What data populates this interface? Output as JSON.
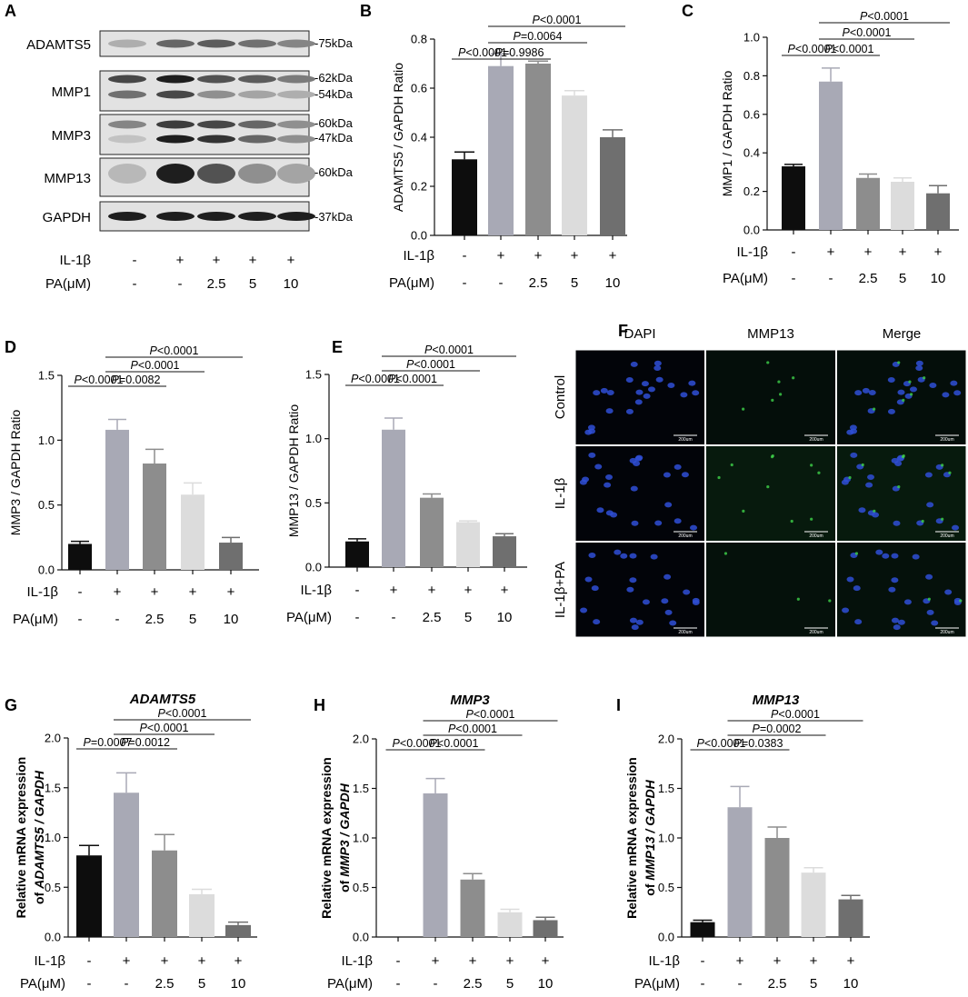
{
  "figure": {
    "panel_letters": [
      "A",
      "B",
      "C",
      "D",
      "E",
      "F",
      "G",
      "H",
      "I"
    ],
    "treatment_rows": {
      "il1b_label": "IL-1β",
      "pa_label": "PA(μM)",
      "il1b_values": [
        "-",
        "+",
        "+",
        "+",
        "+"
      ],
      "pa_values": [
        "-",
        "-",
        "2.5",
        "5",
        "10"
      ]
    },
    "bar_colors": [
      "#0d0d0d",
      "#a8a9b5",
      "#8d8d8d",
      "#dcdcdc",
      "#6f6f6f"
    ]
  },
  "western_blot": {
    "proteins": [
      {
        "name": "ADAMTS5",
        "kda": [
          "-75kDa"
        ]
      },
      {
        "name": "MMP1",
        "kda": [
          "-62kDa",
          "-54kDa"
        ]
      },
      {
        "name": "MMP3",
        "kda": [
          "-60kDa",
          "-47kDa"
        ]
      },
      {
        "name": "MMP13",
        "kda": [
          "-60kDa"
        ]
      },
      {
        "name": "GAPDH",
        "kda": [
          "-37kDa"
        ]
      }
    ],
    "band_intensity": [
      [
        [
          0.25,
          0.6,
          0.65,
          0.55,
          0.45
        ]
      ],
      [
        [
          0.75,
          0.95,
          0.7,
          0.65,
          0.5
        ],
        [
          0.55,
          0.75,
          0.4,
          0.3,
          0.25
        ]
      ],
      [
        [
          0.45,
          0.8,
          0.75,
          0.6,
          0.4
        ],
        [
          0.15,
          0.95,
          0.85,
          0.6,
          0.4
        ]
      ],
      [
        [
          0.2,
          0.95,
          0.7,
          0.4,
          0.3
        ]
      ],
      [
        [
          0.95,
          0.95,
          0.95,
          0.95,
          0.95
        ]
      ]
    ]
  },
  "immunofluorescence": {
    "columns": [
      "DAPI",
      "MMP13",
      "Merge"
    ],
    "rows": [
      "Control",
      "IL-1β",
      "IL-1β+PA"
    ],
    "scale_bar_label": "200um"
  },
  "chart_data": [
    {
      "panel": "B",
      "type": "bar",
      "title": "",
      "categories": [
        "IL-1β - / PA -",
        "IL-1β + / PA -",
        "IL-1β + / PA 2.5",
        "IL-1β + / PA 5",
        "IL-1β + / PA 10"
      ],
      "values": [
        0.31,
        0.69,
        0.7,
        0.57,
        0.4
      ],
      "errors": [
        0.03,
        0.05,
        0.01,
        0.02,
        0.03
      ],
      "ylabel": "ADAMTS5 / GAPDH Ratio",
      "ylim": [
        0,
        0.8
      ],
      "yticks": [
        "0.0",
        "0.2",
        "0.4",
        "0.6",
        "0.8"
      ],
      "ytick_values": [
        0,
        0.2,
        0.4,
        0.6,
        0.8
      ],
      "comparisons": [
        {
          "a": 0,
          "b": 1,
          "label": "P<0.0001"
        },
        {
          "a": 1,
          "b": 2,
          "label": "P=0.9986"
        },
        {
          "a": 1,
          "b": 3,
          "label": "P=0.0064"
        },
        {
          "a": 1,
          "b": 4,
          "label": "P<0.0001"
        }
      ]
    },
    {
      "panel": "C",
      "type": "bar",
      "title": "",
      "categories": [
        "IL-1β - / PA -",
        "IL-1β + / PA -",
        "IL-1β + / PA 2.5",
        "IL-1β + / PA 5",
        "IL-1β + / PA 10"
      ],
      "values": [
        0.33,
        0.77,
        0.27,
        0.25,
        0.19
      ],
      "errors": [
        0.01,
        0.07,
        0.02,
        0.02,
        0.04
      ],
      "ylabel": "MMP1 / GAPDH Ratio",
      "ylim": [
        0,
        1.0
      ],
      "yticks": [
        "0.0",
        "0.2",
        "0.4",
        "0.6",
        "0.8",
        "1.0"
      ],
      "ytick_values": [
        0,
        0.2,
        0.4,
        0.6,
        0.8,
        1.0
      ],
      "comparisons": [
        {
          "a": 0,
          "b": 1,
          "label": "P<0.0001"
        },
        {
          "a": 1,
          "b": 2,
          "label": "P<0.0001"
        },
        {
          "a": 1,
          "b": 3,
          "label": "P<0.0001"
        },
        {
          "a": 1,
          "b": 4,
          "label": "P<0.0001"
        }
      ]
    },
    {
      "panel": "D",
      "type": "bar",
      "title": "",
      "categories": [
        "IL-1β - / PA -",
        "IL-1β + / PA -",
        "IL-1β + / PA 2.5",
        "IL-1β + / PA 5",
        "IL-1β + / PA 10"
      ],
      "values": [
        0.2,
        1.08,
        0.82,
        0.58,
        0.21
      ],
      "errors": [
        0.02,
        0.08,
        0.11,
        0.09,
        0.04
      ],
      "ylabel": "MMP3 / GAPDH Ratio",
      "ylim": [
        0,
        1.5
      ],
      "yticks": [
        "0.0",
        "0.5",
        "1.0",
        "1.5"
      ],
      "ytick_values": [
        0,
        0.5,
        1.0,
        1.5
      ],
      "comparisons": [
        {
          "a": 0,
          "b": 1,
          "label": "P<0.0001"
        },
        {
          "a": 1,
          "b": 2,
          "label": "P=0.0082"
        },
        {
          "a": 1,
          "b": 3,
          "label": "P<0.0001"
        },
        {
          "a": 1,
          "b": 4,
          "label": "P<0.0001"
        }
      ]
    },
    {
      "panel": "E",
      "type": "bar",
      "title": "",
      "categories": [
        "IL-1β - / PA -",
        "IL-1β + / PA -",
        "IL-1β + / PA 2.5",
        "IL-1β + / PA 5",
        "IL-1β + / PA 10"
      ],
      "values": [
        0.2,
        1.07,
        0.54,
        0.35,
        0.24
      ],
      "errors": [
        0.02,
        0.09,
        0.03,
        0.01,
        0.02
      ],
      "ylabel": "MMP13 / GAPDH Ratio",
      "ylim": [
        0,
        1.5
      ],
      "yticks": [
        "0.0",
        "0.5",
        "1.0",
        "1.5"
      ],
      "ytick_values": [
        0,
        0.5,
        1.0,
        1.5
      ],
      "comparisons": [
        {
          "a": 0,
          "b": 1,
          "label": "P<0.0001"
        },
        {
          "a": 1,
          "b": 2,
          "label": "P<0.0001"
        },
        {
          "a": 1,
          "b": 3,
          "label": "P<0.0001"
        },
        {
          "a": 1,
          "b": 4,
          "label": "P<0.0001"
        }
      ]
    },
    {
      "panel": "G",
      "type": "bar",
      "title": "ADAMTS5",
      "categories": [
        "IL-1β - / PA -",
        "IL-1β + / PA -",
        "IL-1β + / PA 2.5",
        "IL-1β + / PA 5",
        "IL-1β + / PA 10"
      ],
      "values": [
        0.82,
        1.45,
        0.87,
        0.43,
        0.12
      ],
      "errors": [
        0.1,
        0.2,
        0.16,
        0.05,
        0.03
      ],
      "ylabel_line1": "Relative mRNA expression",
      "ylabel_line2_prefix": "of ",
      "ylabel_line2_gene": "ADAMTS5 / GAPDH",
      "ylim": [
        0,
        2.0
      ],
      "yticks": [
        "0.0",
        "0.5",
        "1.0",
        "1.5",
        "2.0"
      ],
      "ytick_values": [
        0,
        0.5,
        1.0,
        1.5,
        2.0
      ],
      "comparisons": [
        {
          "a": 0,
          "b": 1,
          "label": "P=0.0007"
        },
        {
          "a": 1,
          "b": 2,
          "label": "P=0.0012"
        },
        {
          "a": 1,
          "b": 3,
          "label": "P<0.0001"
        },
        {
          "a": 1,
          "b": 4,
          "label": "P<0.0001"
        }
      ]
    },
    {
      "panel": "H",
      "type": "bar",
      "title": "MMP3",
      "categories": [
        "IL-1β - / PA -",
        "IL-1β + / PA -",
        "IL-1β + / PA 2.5",
        "IL-1β + / PA 5",
        "IL-1β + / PA 10"
      ],
      "values": [
        0.0,
        1.45,
        0.58,
        0.25,
        0.17
      ],
      "errors": [
        0.0,
        0.15,
        0.06,
        0.03,
        0.03
      ],
      "ylabel_line1": "Relative mRNA expression",
      "ylabel_line2_prefix": "of ",
      "ylabel_line2_gene": "MMP3 / GAPDH",
      "ylim": [
        0,
        2.0
      ],
      "yticks": [
        "0.0",
        "0.5",
        "1.0",
        "1.5",
        "2.0"
      ],
      "ytick_values": [
        0,
        0.5,
        1.0,
        1.5,
        2.0
      ],
      "comparisons": [
        {
          "a": 0,
          "b": 1,
          "label": "P<0.0001"
        },
        {
          "a": 1,
          "b": 2,
          "label": "P<0.0001"
        },
        {
          "a": 1,
          "b": 3,
          "label": "P<0.0001"
        },
        {
          "a": 1,
          "b": 4,
          "label": "P<0.0001"
        }
      ]
    },
    {
      "panel": "I",
      "type": "bar",
      "title": "MMP13",
      "categories": [
        "IL-1β - / PA -",
        "IL-1β + / PA -",
        "IL-1β + / PA 2.5",
        "IL-1β + / PA 5",
        "IL-1β + / PA 10"
      ],
      "values": [
        0.15,
        1.31,
        1.0,
        0.65,
        0.38
      ],
      "errors": [
        0.02,
        0.21,
        0.11,
        0.05,
        0.04
      ],
      "ylabel_line1": "Relative mRNA expression",
      "ylabel_line2_prefix": "of ",
      "ylabel_line2_gene": "MMP13 / GAPDH",
      "ylim": [
        0,
        2.0
      ],
      "yticks": [
        "0.0",
        "0.5",
        "1.0",
        "1.5",
        "2.0"
      ],
      "ytick_values": [
        0,
        0.5,
        1.0,
        1.5,
        2.0
      ],
      "comparisons": [
        {
          "a": 0,
          "b": 1,
          "label": "P<0.0001"
        },
        {
          "a": 1,
          "b": 2,
          "label": "P=0.0383"
        },
        {
          "a": 1,
          "b": 3,
          "label": "P=0.0002"
        },
        {
          "a": 1,
          "b": 4,
          "label": "P<0.0001"
        }
      ]
    }
  ]
}
